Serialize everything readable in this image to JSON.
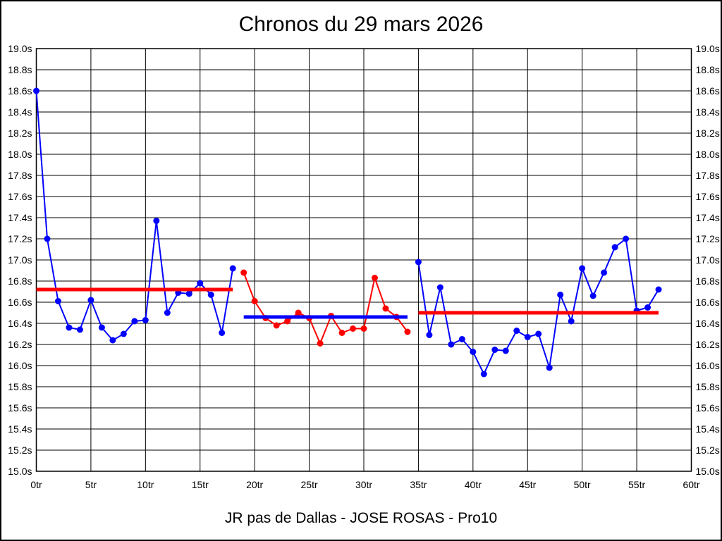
{
  "title": "Chronos du 29 mars 2026",
  "caption": "JR pas de Dallas - JOSE ROSAS - Pro10",
  "colors": {
    "series_blue": "#0000ff",
    "series_red": "#ff0000",
    "grid": "#000000",
    "background": "#ffffff"
  },
  "chart_data": {
    "type": "line",
    "title": "Chronos du 29 mars 2026",
    "subtitle": "JR pas de Dallas - JOSE ROSAS - Pro10",
    "x_unit": "tr",
    "y_unit": "s",
    "xlim": [
      0,
      60
    ],
    "ylim": [
      15.0,
      19.0
    ],
    "x_tick_step": 5,
    "y_tick_step": 0.2,
    "grid": true,
    "legend": "none",
    "x_tick_labels": [
      "0tr",
      "5tr",
      "10tr",
      "15tr",
      "20tr",
      "25tr",
      "30tr",
      "35tr",
      "40tr",
      "45tr",
      "50tr",
      "55tr",
      "60tr"
    ],
    "y_tick_labels": [
      "19.0s",
      "18.8s",
      "18.6s",
      "18.4s",
      "18.2s",
      "18.0s",
      "17.8s",
      "17.6s",
      "17.4s",
      "17.2s",
      "17.0s",
      "16.8s",
      "16.6s",
      "16.4s",
      "16.2s",
      "16.0s",
      "15.8s",
      "15.6s",
      "15.4s",
      "15.2s",
      "15.0s"
    ],
    "series": [
      {
        "name": "laps-segment-1",
        "color": "#0000ff",
        "x": [
          0,
          1,
          2,
          3,
          4,
          5,
          6,
          7,
          8,
          9,
          10,
          11,
          12,
          13,
          14,
          15,
          16,
          17,
          18
        ],
        "y": [
          18.6,
          17.2,
          16.61,
          16.36,
          16.34,
          16.62,
          16.36,
          16.24,
          16.3,
          16.42,
          16.43,
          17.37,
          16.5,
          16.69,
          16.68,
          16.78,
          16.67,
          16.31,
          16.92
        ]
      },
      {
        "name": "laps-segment-2",
        "color": "#ff0000",
        "x": [
          19,
          20,
          21,
          22,
          23,
          24,
          25,
          26,
          27,
          28,
          29,
          30,
          31,
          32,
          33,
          34
        ],
        "y": [
          16.88,
          16.61,
          16.45,
          16.38,
          16.42,
          16.5,
          16.45,
          16.21,
          16.47,
          16.31,
          16.35,
          16.35,
          16.83,
          16.54,
          16.46,
          16.32
        ]
      },
      {
        "name": "laps-segment-3",
        "color": "#0000ff",
        "x": [
          35,
          36,
          37,
          38,
          39,
          40,
          41,
          42,
          43,
          44,
          45,
          46,
          47,
          48,
          49,
          50,
          51,
          52,
          53,
          54,
          55,
          56,
          57
        ],
        "y": [
          16.98,
          16.29,
          16.74,
          16.2,
          16.25,
          16.13,
          15.92,
          16.15,
          16.14,
          16.33,
          16.27,
          16.3,
          15.98,
          16.67,
          16.42,
          16.92,
          16.66,
          16.88,
          17.12,
          17.2,
          16.52,
          16.55,
          16.72
        ]
      }
    ],
    "average_lines": [
      {
        "name": "average-segment-1",
        "color": "#ff0000",
        "y": 16.72,
        "x_start": 0,
        "x_end": 18
      },
      {
        "name": "average-segment-2",
        "color": "#0000ff",
        "y": 16.46,
        "x_start": 19,
        "x_end": 34
      },
      {
        "name": "average-segment-3",
        "color": "#ff0000",
        "y": 16.5,
        "x_start": 35,
        "x_end": 57
      }
    ]
  }
}
